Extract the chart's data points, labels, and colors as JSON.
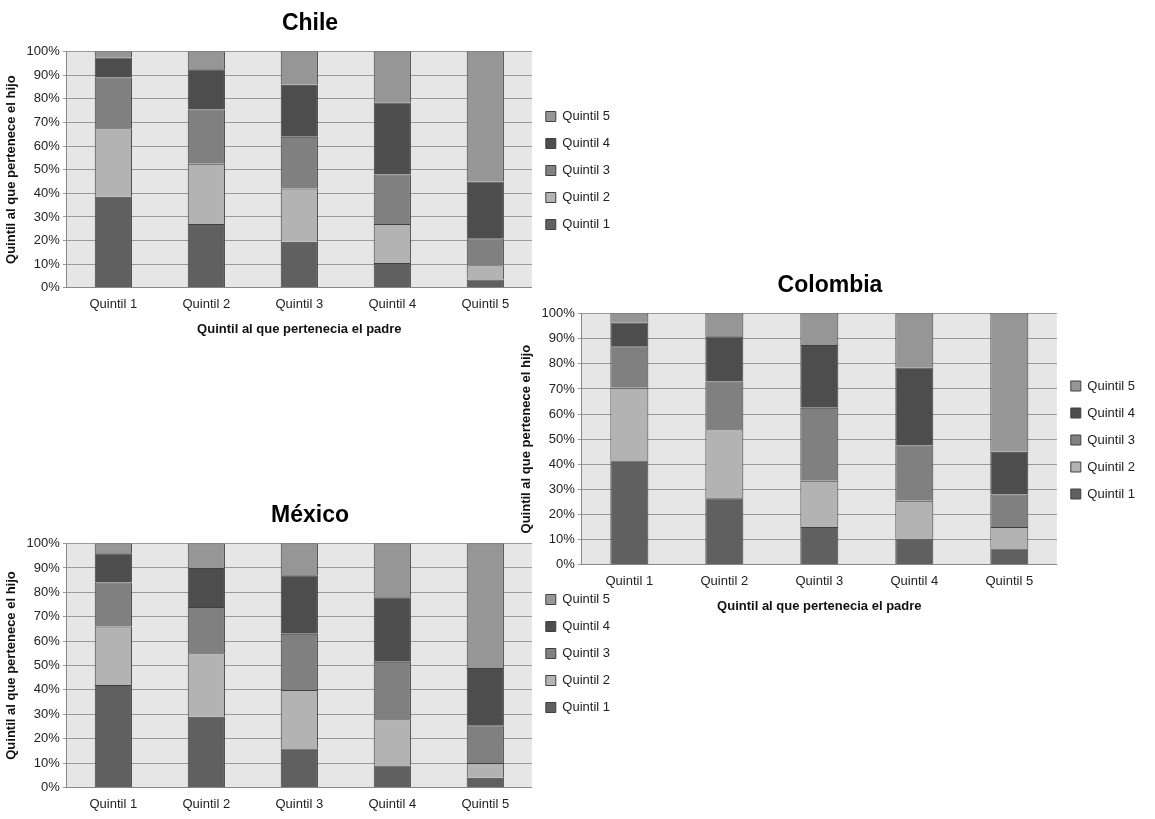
{
  "chart_data": [
    {
      "type": "bar",
      "title": "Chile",
      "xlabel": "Quintil al que pertenecia el padre",
      "ylabel": "Quintil al que pertenece el hijo",
      "categories": [
        "Quintil 1",
        "Quintil 2",
        "Quintil 3",
        "Quintil 4",
        "Quintil 5"
      ],
      "stacked": true,
      "ylim": [
        0,
        100
      ],
      "yticks": [
        {
          "value": 0,
          "label": "0%"
        },
        {
          "value": 10,
          "label": "10%"
        },
        {
          "value": 20,
          "label": "20%"
        },
        {
          "value": 30,
          "label": "30%"
        },
        {
          "value": 40,
          "label": "40%"
        },
        {
          "value": 50,
          "label": "50%"
        },
        {
          "value": 60,
          "label": "60%"
        },
        {
          "value": 70,
          "label": "70%"
        },
        {
          "value": 80,
          "label": "80%"
        },
        {
          "value": 90,
          "label": "90%"
        },
        {
          "value": 100,
          "label": "100%"
        }
      ],
      "grid": "y",
      "legend": "right",
      "series": [
        {
          "name": "Quintil 1",
          "color": "#606060",
          "values": [
            38.5,
            27,
            19.5,
            10.5,
            3.5
          ]
        },
        {
          "name": "Quintil 2",
          "color": "#b3b3b3",
          "values": [
            29,
            25.5,
            22.5,
            16.5,
            6
          ]
        },
        {
          "name": "Quintil 3",
          "color": "#808080",
          "values": [
            21.5,
            23,
            22,
            21,
            11.5
          ]
        },
        {
          "name": "Quintil 4",
          "color": "#4d4d4d",
          "values": [
            8.5,
            17,
            22,
            30.5,
            24
          ]
        },
        {
          "name": "Quintil 5",
          "color": "#969696",
          "values": [
            2.5,
            7.5,
            14,
            21.5,
            55
          ]
        }
      ]
    },
    {
      "type": "bar",
      "title": "Colombia",
      "xlabel": "Quintil al que pertenecia el padre",
      "ylabel": "Quintil al que pertenece el hijo",
      "categories": [
        "Quintil 1",
        "Quintil 2",
        "Quintil 3",
        "Quintil 4",
        "Quintil 5"
      ],
      "stacked": true,
      "ylim": [
        0,
        100
      ],
      "yticks": [
        {
          "value": 0,
          "label": "0%"
        },
        {
          "value": 10,
          "label": "10%"
        },
        {
          "value": 20,
          "label": "20%"
        },
        {
          "value": 30,
          "label": "30%"
        },
        {
          "value": 40,
          "label": "40%"
        },
        {
          "value": 50,
          "label": "50%"
        },
        {
          "value": 60,
          "label": "60%"
        },
        {
          "value": 70,
          "label": "70%"
        },
        {
          "value": 80,
          "label": "80%"
        },
        {
          "value": 90,
          "label": "90%"
        },
        {
          "value": 100,
          "label": "100%"
        }
      ],
      "grid": "y",
      "legend": "right",
      "series": [
        {
          "name": "Quintil 1",
          "color": "#606060",
          "values": [
            41.5,
            26.5,
            15,
            10.5,
            6.5
          ]
        },
        {
          "name": "Quintil 2",
          "color": "#b3b3b3",
          "values": [
            29,
            27.5,
            18.5,
            15,
            8.5
          ]
        },
        {
          "name": "Quintil 3",
          "color": "#808080",
          "values": [
            16.5,
            19,
            29,
            22,
            13
          ]
        },
        {
          "name": "Quintil 4",
          "color": "#4d4d4d",
          "values": [
            9.5,
            18,
            25,
            31,
            17
          ]
        },
        {
          "name": "Quintil 5",
          "color": "#969696",
          "values": [
            3.5,
            9,
            12.5,
            21.5,
            55
          ]
        }
      ]
    },
    {
      "type": "bar",
      "title": "México",
      "ylabel": "Quintil al que pertenece el hijo",
      "categories": [
        "Quintil 1",
        "Quintil 2",
        "Quintil 3",
        "Quintil 4",
        "Quintil 5"
      ],
      "stacked": true,
      "ylim": [
        0,
        100
      ],
      "yticks": [
        {
          "value": 0,
          "label": "0%"
        },
        {
          "value": 10,
          "label": "10%"
        },
        {
          "value": 20,
          "label": "20%"
        },
        {
          "value": 30,
          "label": "30%"
        },
        {
          "value": 40,
          "label": "40%"
        },
        {
          "value": 50,
          "label": "50%"
        },
        {
          "value": 60,
          "label": "60%"
        },
        {
          "value": 70,
          "label": "70%"
        },
        {
          "value": 80,
          "label": "80%"
        },
        {
          "value": 90,
          "label": "90%"
        },
        {
          "value": 100,
          "label": "100%"
        }
      ],
      "grid": "y",
      "legend": "right",
      "series": [
        {
          "name": "Quintil 1",
          "color": "#606060",
          "values": [
            42,
            29,
            16,
            9,
            4
          ]
        },
        {
          "name": "Quintil 2",
          "color": "#b3b3b3",
          "values": [
            24,
            26,
            24,
            19,
            6
          ]
        },
        {
          "name": "Quintil 3",
          "color": "#808080",
          "values": [
            18,
            19,
            23,
            23.5,
            15.5
          ]
        },
        {
          "name": "Quintil 4",
          "color": "#4d4d4d",
          "values": [
            12,
            16,
            24,
            26.5,
            23.5
          ]
        },
        {
          "name": "Quintil 5",
          "color": "#969696",
          "values": [
            4,
            10,
            13,
            22,
            51
          ]
        }
      ]
    }
  ]
}
